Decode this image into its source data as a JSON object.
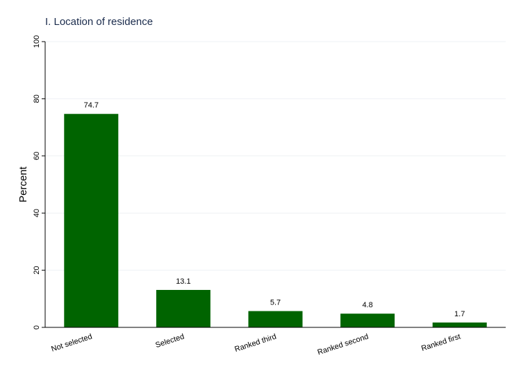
{
  "chart_data": {
    "type": "bar",
    "title": "I. Location of residence",
    "xlabel": "",
    "ylabel": "Percent",
    "categories": [
      "Not selected",
      "Selected",
      "Ranked third",
      "Ranked second",
      "Ranked first"
    ],
    "values": [
      74.7,
      13.1,
      5.7,
      4.8,
      1.7
    ],
    "data_labels": [
      "74.7",
      "13.1",
      "5.7",
      "4.8",
      "1.7"
    ],
    "ylim": [
      0,
      100
    ],
    "yticks": [
      0,
      20,
      40,
      60,
      80,
      100
    ],
    "ytick_labels": [
      "0",
      "20",
      "40",
      "60",
      "80",
      "100"
    ],
    "grid": true,
    "legend": "none",
    "bar_color": "#006400"
  }
}
